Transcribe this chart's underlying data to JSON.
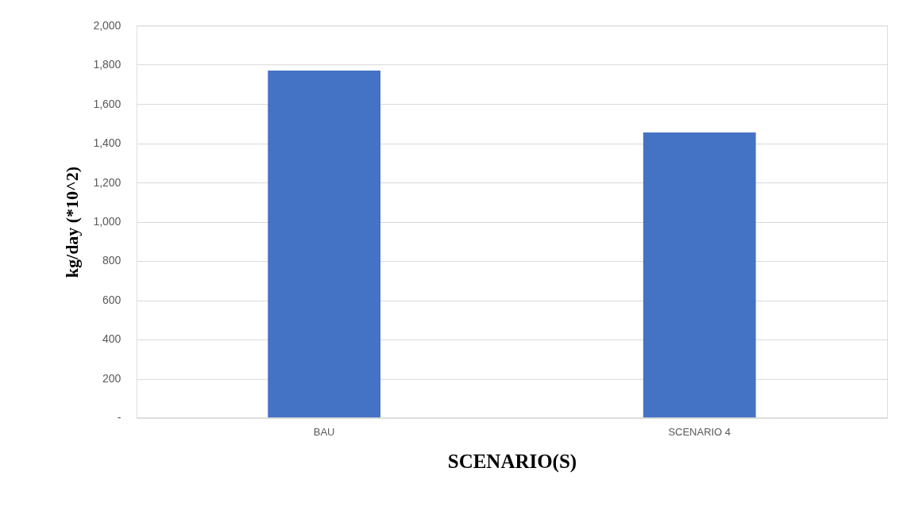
{
  "chart_data": {
    "type": "bar",
    "xlabel": "SCENARIO(S)",
    "ylabel": "kg/day (*10^2)",
    "categories": [
      "BAU",
      "SCENARIO 4"
    ],
    "values": [
      1770,
      1455
    ],
    "color": "#4472c4",
    "ylim": [
      0,
      2000
    ],
    "yticks": [
      {
        "value": 0,
        "label": "-"
      },
      {
        "value": 200,
        "label": "200"
      },
      {
        "value": 400,
        "label": "400"
      },
      {
        "value": 600,
        "label": "600"
      },
      {
        "value": 800,
        "label": "800"
      },
      {
        "value": 1000,
        "label": "1,000"
      },
      {
        "value": 1200,
        "label": "1,200"
      },
      {
        "value": 1400,
        "label": "1,400"
      },
      {
        "value": 1600,
        "label": "1,600"
      },
      {
        "value": 1800,
        "label": "1,800"
      },
      {
        "value": 2000,
        "label": "2,000"
      }
    ],
    "grid": "y"
  }
}
